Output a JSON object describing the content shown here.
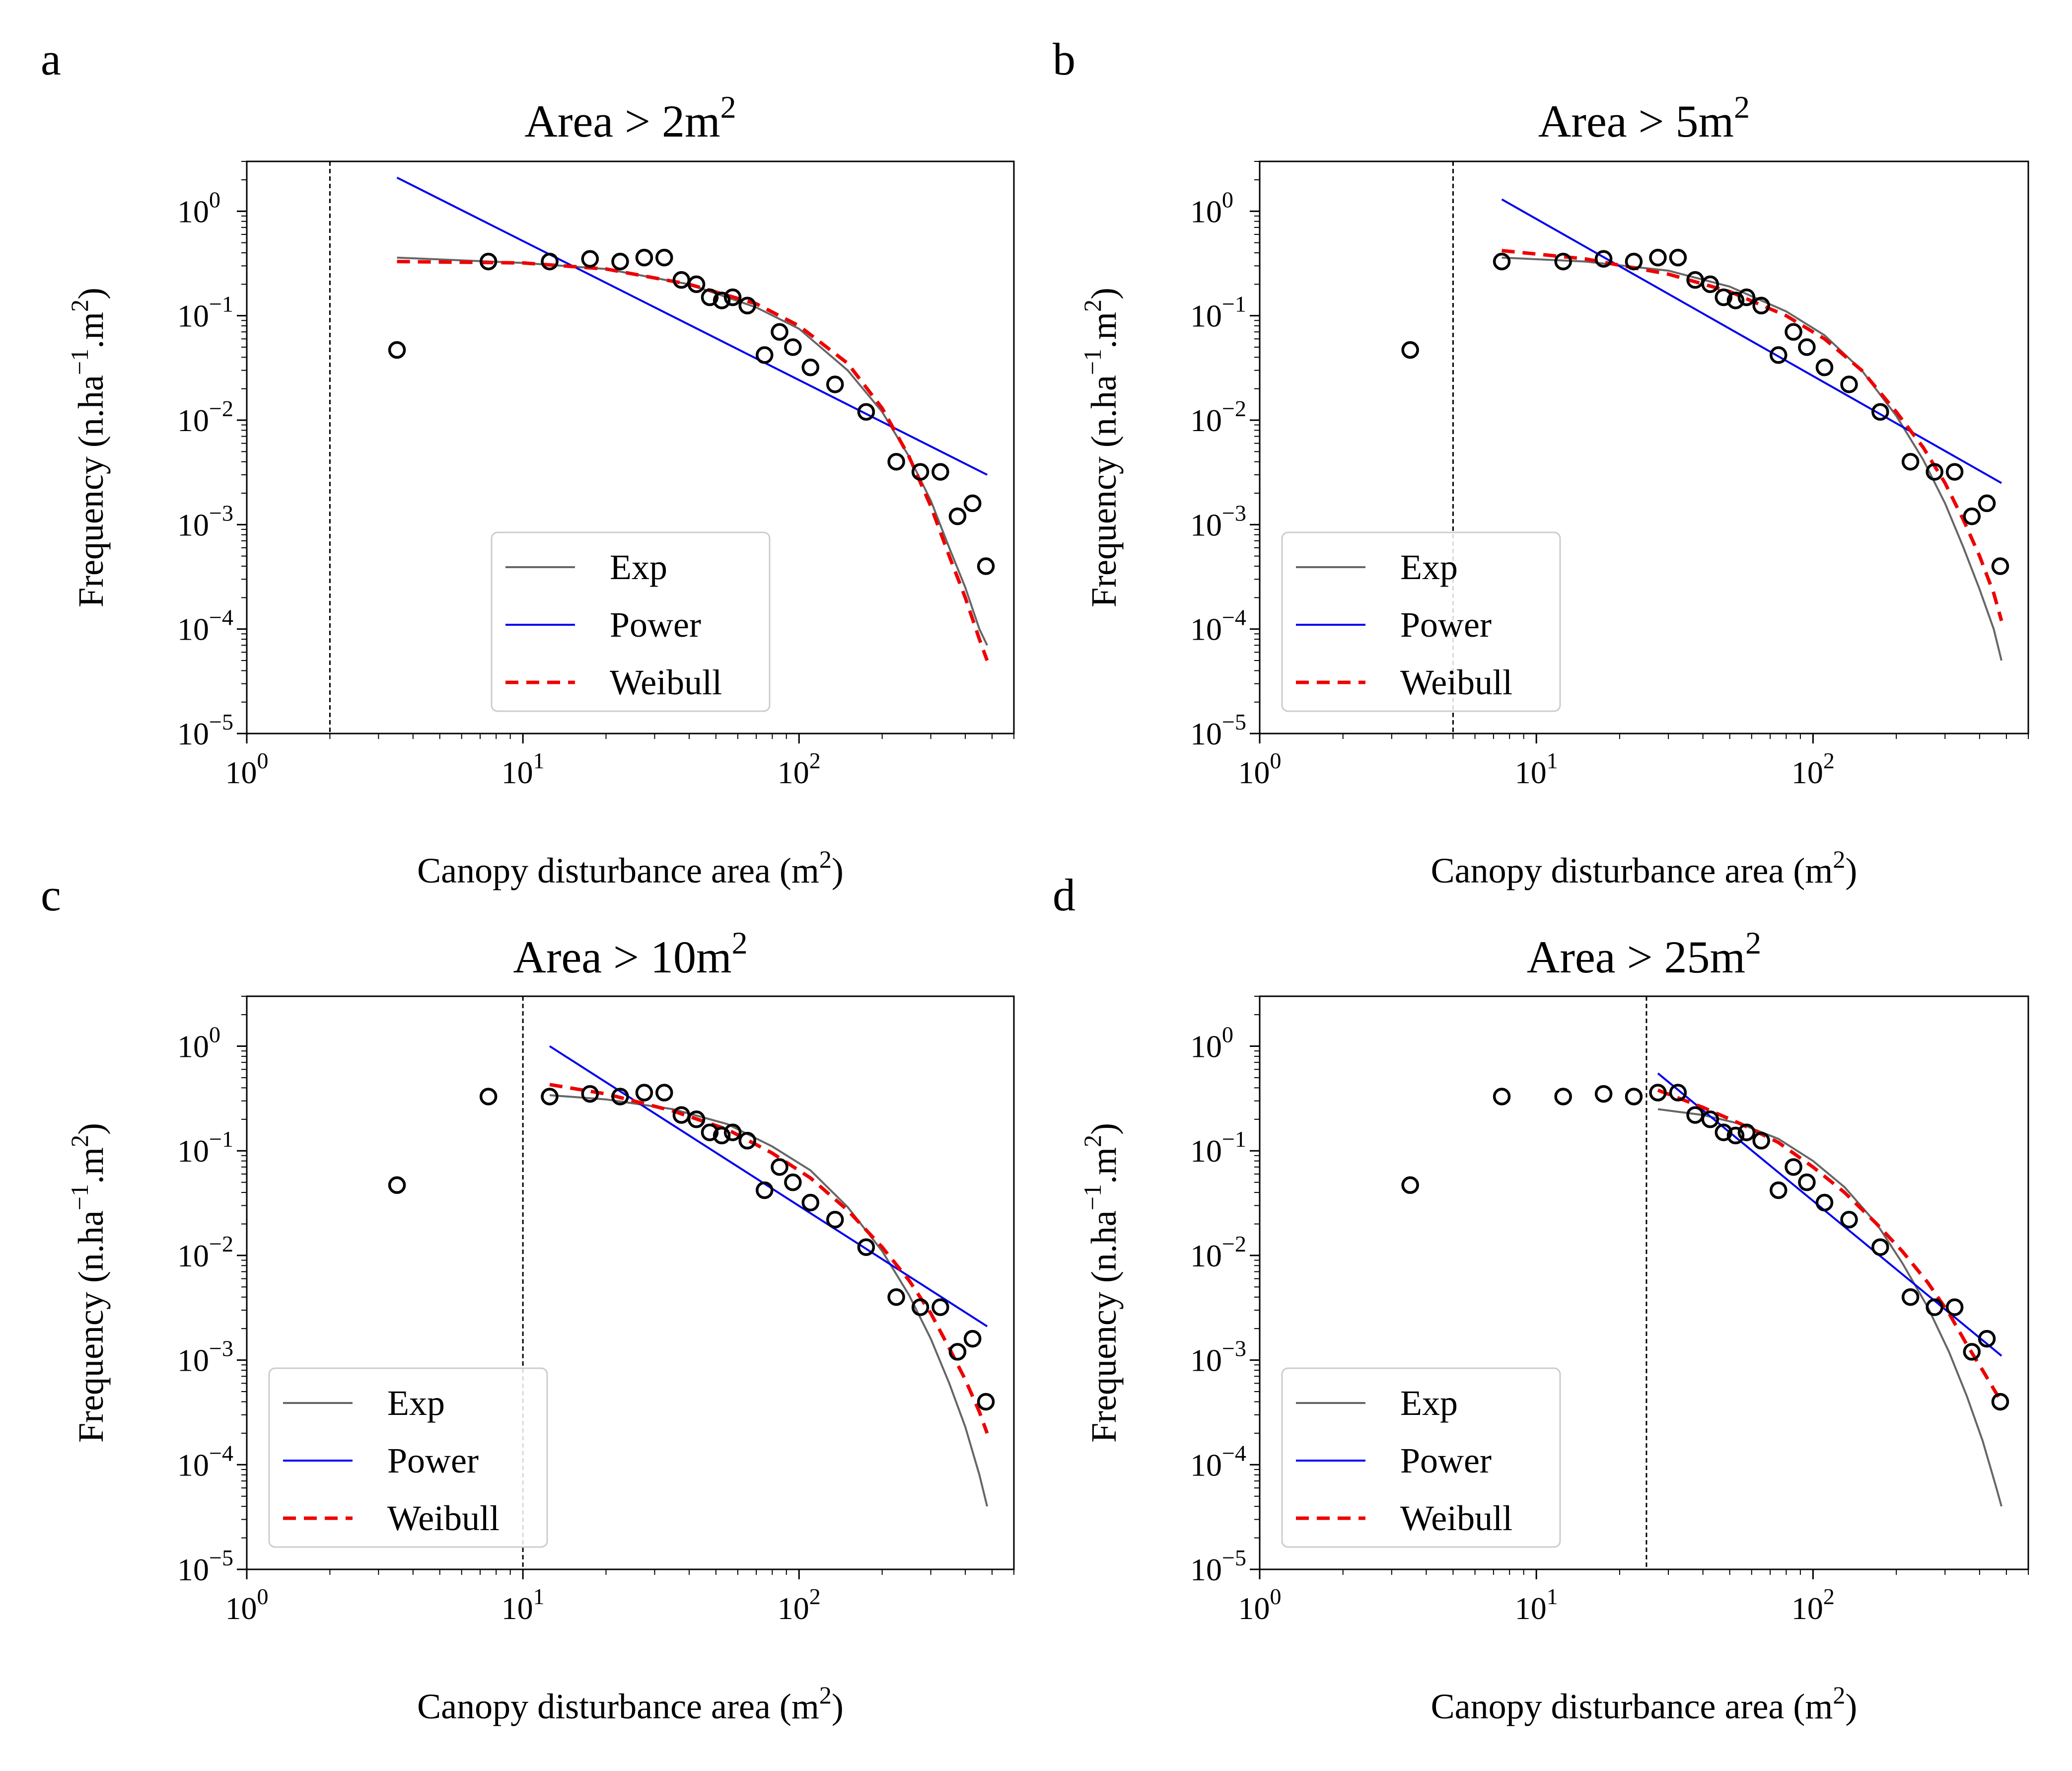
{
  "figure": {
    "common": {
      "xlabel_text": "Canopy disturbance area (m",
      "xlabel_sup": "2",
      "xlabel_close": ")",
      "ylabel_text": "Frequency (n.ha",
      "ylabel_sup": "−1",
      "ylabel_mid": ".m",
      "ylabel_sup2": "2",
      "ylabel_close": ")",
      "x_ticks": [
        {
          "base": "10",
          "exp": "0",
          "value": 1
        },
        {
          "base": "10",
          "exp": "1",
          "value": 10
        },
        {
          "base": "10",
          "exp": "2",
          "value": 100
        }
      ],
      "y_ticks": [
        {
          "base": "10",
          "exp": "0",
          "value": 1
        },
        {
          "base": "10",
          "exp": "−1",
          "value": 0.1
        },
        {
          "base": "10",
          "exp": "−2",
          "value": 0.01
        },
        {
          "base": "10",
          "exp": "−3",
          "value": 0.001
        },
        {
          "base": "10",
          "exp": "−4",
          "value": 0.0001
        },
        {
          "base": "10",
          "exp": "−5",
          "value": 1e-05
        }
      ],
      "legend_entries": [
        "Exp",
        "Power",
        "Weibull"
      ],
      "colors": {
        "exp": "#666666",
        "power": "#0000ee",
        "weibull": "#ee0000",
        "points": "#000000",
        "cutoff": "#000000"
      }
    }
  },
  "chart_data": [
    {
      "panel_label": "a",
      "title_text": "Area > 2m",
      "title_sup": "2",
      "type": "scatter",
      "x_scale": "log",
      "y_scale": "log",
      "xlim": [
        1,
        600
      ],
      "ylim": [
        1e-05,
        3
      ],
      "threshold": 2,
      "legend_placement": "lower-center",
      "points": {
        "x": [
          3.5,
          7.5,
          12.5,
          17.5,
          22.5,
          27.5,
          32.5,
          37.5,
          42.5,
          47.5,
          52.5,
          57.5,
          65,
          75,
          85,
          95,
          110,
          135,
          175,
          225,
          275,
          325,
          375,
          425,
          475
        ],
        "y": [
          0.047,
          0.33,
          0.33,
          0.35,
          0.33,
          0.36,
          0.36,
          0.22,
          0.2,
          0.15,
          0.14,
          0.15,
          0.125,
          0.042,
          0.07,
          0.05,
          0.032,
          0.022,
          0.012,
          0.004,
          0.0032,
          0.0032,
          0.0012,
          0.0016,
          0.0004
        ]
      },
      "series": [
        {
          "name": "Exp",
          "style": "solid",
          "x": [
            3.5,
            10,
            20,
            40,
            70,
            100,
            150,
            200,
            250,
            300,
            350,
            400,
            450,
            480
          ],
          "y": [
            0.36,
            0.32,
            0.28,
            0.2,
            0.12,
            0.075,
            0.03,
            0.012,
            0.0045,
            0.0017,
            0.0006,
            0.00025,
            0.0001,
            7e-05
          ]
        },
        {
          "name": "Power",
          "style": "solid",
          "x": [
            3.5,
            480
          ],
          "y": [
            2.1,
            0.003
          ]
        },
        {
          "name": "Weibull",
          "style": "dashed",
          "x": [
            3.5,
            10,
            20,
            40,
            70,
            100,
            150,
            200,
            250,
            300,
            350,
            400,
            450,
            480
          ],
          "y": [
            0.33,
            0.32,
            0.28,
            0.2,
            0.13,
            0.08,
            0.035,
            0.013,
            0.0045,
            0.0015,
            0.0005,
            0.0002,
            8e-05,
            5e-05
          ]
        }
      ]
    },
    {
      "panel_label": "b",
      "title_text": "Area > 5m",
      "title_sup": "2",
      "type": "scatter",
      "x_scale": "log",
      "y_scale": "log",
      "xlim": [
        1,
        600
      ],
      "ylim": [
        1e-05,
        3
      ],
      "threshold": 5,
      "legend_placement": "lower-left",
      "points": {
        "x": [
          3.5,
          7.5,
          12.5,
          17.5,
          22.5,
          27.5,
          32.5,
          37.5,
          42.5,
          47.5,
          52.5,
          57.5,
          65,
          75,
          85,
          95,
          110,
          135,
          175,
          225,
          275,
          325,
          375,
          425,
          475
        ],
        "y": [
          0.047,
          0.33,
          0.33,
          0.35,
          0.33,
          0.36,
          0.36,
          0.22,
          0.2,
          0.15,
          0.14,
          0.15,
          0.125,
          0.042,
          0.07,
          0.05,
          0.032,
          0.022,
          0.012,
          0.004,
          0.0032,
          0.0032,
          0.0012,
          0.0016,
          0.0004
        ]
      },
      "series": [
        {
          "name": "Exp",
          "style": "solid",
          "x": [
            7.5,
            15,
            30,
            50,
            80,
            110,
            150,
            200,
            250,
            300,
            350,
            400,
            450,
            480
          ],
          "y": [
            0.36,
            0.33,
            0.27,
            0.19,
            0.11,
            0.065,
            0.03,
            0.011,
            0.0042,
            0.0016,
            0.0006,
            0.00024,
            0.0001,
            5e-05
          ]
        },
        {
          "name": "Power",
          "style": "solid",
          "x": [
            7.5,
            480
          ],
          "y": [
            1.3,
            0.0025
          ]
        },
        {
          "name": "Weibull",
          "style": "dashed",
          "x": [
            7.5,
            15,
            30,
            50,
            80,
            110,
            150,
            200,
            250,
            300,
            350,
            400,
            450,
            480
          ],
          "y": [
            0.42,
            0.35,
            0.25,
            0.17,
            0.1,
            0.06,
            0.03,
            0.012,
            0.0055,
            0.0025,
            0.0011,
            0.0005,
            0.00022,
            0.00012
          ]
        }
      ]
    },
    {
      "panel_label": "c",
      "title_text": "Area > 10m",
      "title_sup": "2",
      "type": "scatter",
      "x_scale": "log",
      "y_scale": "log",
      "xlim": [
        1,
        600
      ],
      "ylim": [
        1e-05,
        3
      ],
      "threshold": 10,
      "legend_placement": "lower-left",
      "points": {
        "x": [
          3.5,
          7.5,
          12.5,
          17.5,
          22.5,
          27.5,
          32.5,
          37.5,
          42.5,
          47.5,
          52.5,
          57.5,
          65,
          75,
          85,
          95,
          110,
          135,
          175,
          225,
          275,
          325,
          375,
          425,
          475
        ],
        "y": [
          0.047,
          0.33,
          0.33,
          0.35,
          0.33,
          0.36,
          0.36,
          0.22,
          0.2,
          0.15,
          0.14,
          0.15,
          0.125,
          0.042,
          0.07,
          0.05,
          0.032,
          0.022,
          0.012,
          0.004,
          0.0032,
          0.0032,
          0.0012,
          0.0016,
          0.0004
        ]
      },
      "series": [
        {
          "name": "Exp",
          "style": "solid",
          "x": [
            12.5,
            20,
            35,
            55,
            80,
            110,
            150,
            200,
            250,
            300,
            350,
            400,
            450,
            480
          ],
          "y": [
            0.34,
            0.31,
            0.25,
            0.18,
            0.11,
            0.065,
            0.029,
            0.011,
            0.0042,
            0.0016,
            0.0006,
            0.00023,
            8e-05,
            4e-05
          ]
        },
        {
          "name": "Power",
          "style": "solid",
          "x": [
            12.5,
            480
          ],
          "y": [
            1.0,
            0.0021
          ]
        },
        {
          "name": "Weibull",
          "style": "dashed",
          "x": [
            12.5,
            20,
            35,
            55,
            80,
            110,
            150,
            200,
            250,
            300,
            350,
            400,
            450,
            480
          ],
          "y": [
            0.43,
            0.35,
            0.24,
            0.16,
            0.095,
            0.055,
            0.027,
            0.012,
            0.0058,
            0.0028,
            0.0013,
            0.00065,
            0.00032,
            0.0002
          ]
        }
      ]
    },
    {
      "panel_label": "d",
      "title_text": "Area > 25m",
      "title_sup": "2",
      "type": "scatter",
      "x_scale": "log",
      "y_scale": "log",
      "xlim": [
        1,
        600
      ],
      "ylim": [
        1e-05,
        3
      ],
      "threshold": 25,
      "legend_placement": "lower-left",
      "points": {
        "x": [
          3.5,
          7.5,
          12.5,
          17.5,
          22.5,
          27.5,
          32.5,
          37.5,
          42.5,
          47.5,
          52.5,
          57.5,
          65,
          75,
          85,
          95,
          110,
          135,
          175,
          225,
          275,
          325,
          375,
          425,
          475
        ],
        "y": [
          0.047,
          0.33,
          0.33,
          0.35,
          0.33,
          0.36,
          0.36,
          0.22,
          0.2,
          0.15,
          0.14,
          0.15,
          0.125,
          0.042,
          0.07,
          0.05,
          0.032,
          0.022,
          0.012,
          0.004,
          0.0032,
          0.0032,
          0.0012,
          0.0016,
          0.0004
        ]
      },
      "series": [
        {
          "name": "Exp",
          "style": "solid",
          "x": [
            27.5,
            40,
            55,
            75,
            100,
            130,
            170,
            210,
            260,
            310,
            360,
            410,
            460,
            480
          ],
          "y": [
            0.25,
            0.22,
            0.18,
            0.13,
            0.08,
            0.045,
            0.02,
            0.0085,
            0.0032,
            0.0012,
            0.00045,
            0.00017,
            6e-05,
            4e-05
          ]
        },
        {
          "name": "Power",
          "style": "solid",
          "x": [
            27.5,
            480
          ],
          "y": [
            0.55,
            0.0011
          ]
        },
        {
          "name": "Weibull",
          "style": "dashed",
          "x": [
            27.5,
            40,
            55,
            75,
            100,
            130,
            170,
            210,
            260,
            310,
            360,
            410,
            460,
            480
          ],
          "y": [
            0.38,
            0.26,
            0.18,
            0.12,
            0.07,
            0.04,
            0.02,
            0.011,
            0.0055,
            0.0028,
            0.0014,
            0.0008,
            0.00048,
            0.0004
          ]
        }
      ]
    }
  ]
}
